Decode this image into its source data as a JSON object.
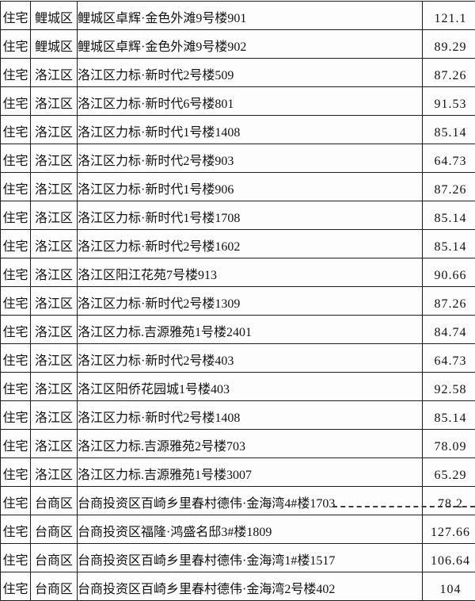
{
  "colors": {
    "border": "#1c1c1c",
    "text": "#111111",
    "background": "#fdfdfd"
  },
  "table": {
    "rows": [
      {
        "type": "住宅",
        "district": "鲤城区",
        "building": "鲤城区卓辉·金色外滩9号楼901",
        "area": "121.1"
      },
      {
        "type": "住宅",
        "district": "鲤城区",
        "building": "鲤城区卓辉·金色外滩9号楼902",
        "area": "89.29"
      },
      {
        "type": "住宅",
        "district": "洛江区",
        "building": "洛江区力标·新时代2号楼509",
        "area": "87.26"
      },
      {
        "type": "住宅",
        "district": "洛江区",
        "building": "洛江区力标·新时代6号楼801",
        "area": "91.53"
      },
      {
        "type": "住宅",
        "district": "洛江区",
        "building": "洛江区力标·新时代1号楼1408",
        "area": "85.14"
      },
      {
        "type": "住宅",
        "district": "洛江区",
        "building": "洛江区力标·新时代2号楼903",
        "area": "64.73"
      },
      {
        "type": "住宅",
        "district": "洛江区",
        "building": "洛江区力标·新时代1号楼906",
        "area": "87.26"
      },
      {
        "type": "住宅",
        "district": "洛江区",
        "building": "洛江区力标·新时代1号楼1708",
        "area": "85.14"
      },
      {
        "type": "住宅",
        "district": "洛江区",
        "building": "洛江区力标·新时代2号楼1602",
        "area": "85.14"
      },
      {
        "type": "住宅",
        "district": "洛江区",
        "building": "洛江区阳江花苑7号楼913",
        "area": "90.66"
      },
      {
        "type": "住宅",
        "district": "洛江区",
        "building": "洛江区力标·新时代2号楼1309",
        "area": "87.26"
      },
      {
        "type": "住宅",
        "district": "洛江区",
        "building": "洛江区力标.吉源雅苑1号楼2401",
        "area": "84.74"
      },
      {
        "type": "住宅",
        "district": "洛江区",
        "building": "洛江区力标·新时代2号楼403",
        "area": "64.73"
      },
      {
        "type": "住宅",
        "district": "洛江区",
        "building": "洛江区阳侨花园城1号楼403",
        "area": "92.58"
      },
      {
        "type": "住宅",
        "district": "洛江区",
        "building": "洛江区力标·新时代2号楼1408",
        "area": "85.14"
      },
      {
        "type": "住宅",
        "district": "洛江区",
        "building": "洛江区力标.吉源雅苑2号楼703",
        "area": "78.09"
      },
      {
        "type": "住宅",
        "district": "洛江区",
        "building": "洛江区力标.吉源雅苑1号楼3007",
        "area": "65.29"
      },
      {
        "type": "住宅",
        "district": "台商区",
        "building": "台商投资区百崎乡里春村德伟·金海湾4#楼1703",
        "area": "78.2"
      },
      {
        "type": "住宅",
        "district": "台商区",
        "building": "台商投资区福隆·鸿盛名邸3#楼1809",
        "area": "127.66"
      },
      {
        "type": "住宅",
        "district": "台商区",
        "building": "台商投资区百崎乡里春村德伟·金海湾1#楼1517",
        "area": "106.64"
      },
      {
        "type": "住宅",
        "district": "台商区",
        "building": "台商投资区百崎乡里春村德伟·金海湾2号楼402",
        "area": "104"
      }
    ]
  }
}
